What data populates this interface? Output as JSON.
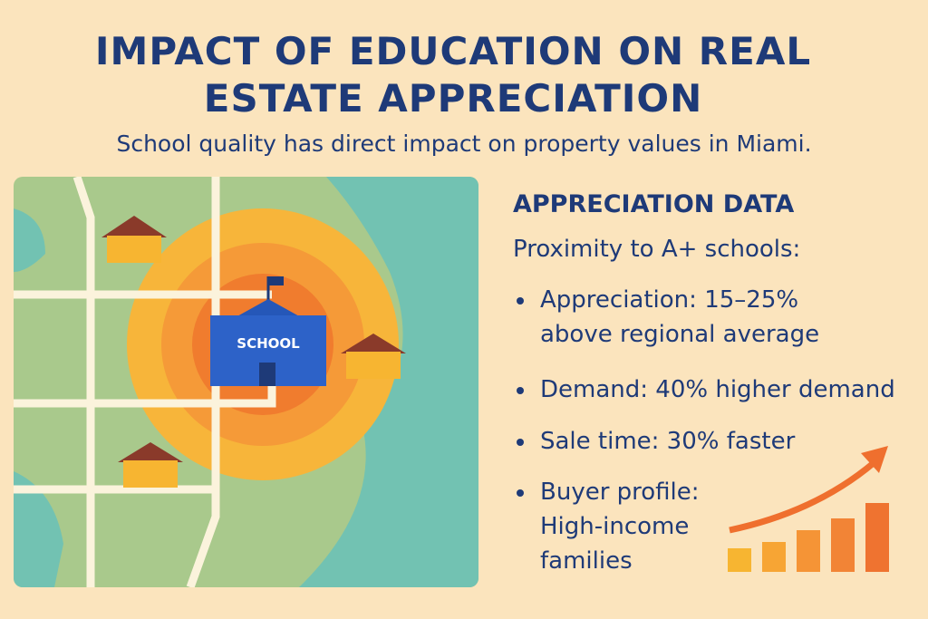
{
  "header": {
    "title_lines": [
      "IMPACT OF EDUCATION ON REAL",
      "ESTATE APPRECIATION"
    ],
    "subtitle": "School quality has direct impact on property values in Miami."
  },
  "map": {
    "school_label": "SCHOOL"
  },
  "panel": {
    "heading": "APPRECIATION DATA",
    "intro": "Proximity to A+ schools:",
    "bullets": [
      "Appreciation: 15–25% above regional average",
      "Demand: 40% higher demand",
      "Sale time: 30% faster",
      "Buyer profile: High-income families"
    ]
  }
}
